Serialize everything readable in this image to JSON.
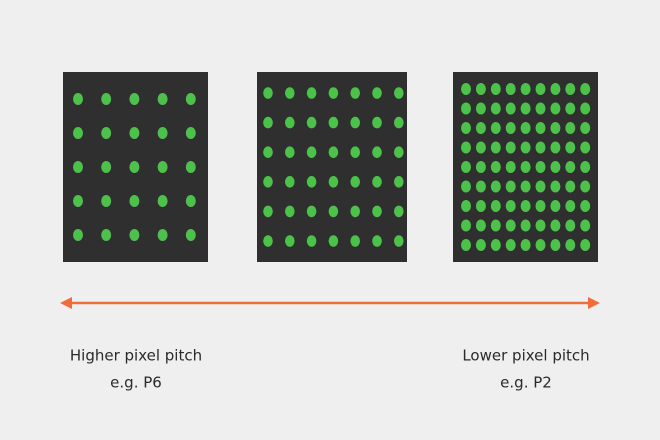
{
  "labels": [
    {
      "title": "Higher pixel pitch",
      "example": "e.g. P6"
    },
    {
      "title": "Lower pixel pitch",
      "example": "e.g. P2"
    }
  ]
}
